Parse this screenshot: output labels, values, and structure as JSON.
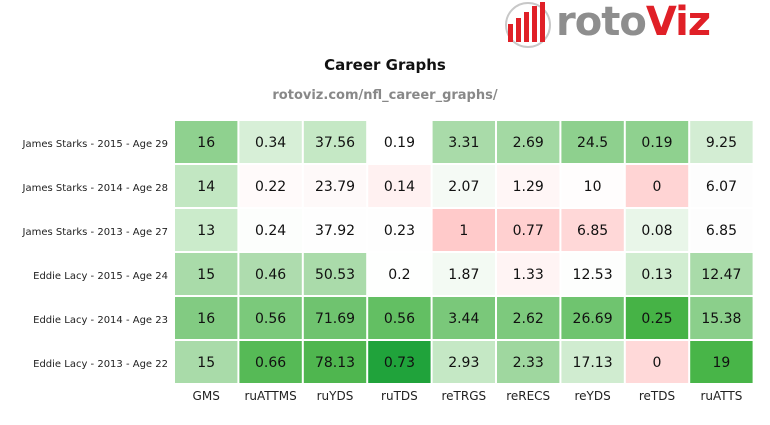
{
  "logo": {
    "text_part1": "roto",
    "text_part2": "Viz",
    "brand_gray": "#8e8e8e",
    "brand_red": "#e02027"
  },
  "chart_data": {
    "type": "heatmap",
    "title": "Career Graphs",
    "subtitle": "rotoviz.com/nfl_career_graphs/",
    "columns": [
      "GMS",
      "ruATTMS",
      "ruYDS",
      "ruTDS",
      "reTRGS",
      "reRECS",
      "reYDS",
      "reTDS",
      "ruATTS"
    ],
    "rows": [
      "James Starks - 2015 - Age 29",
      "James Starks - 2014 - Age 28",
      "James Starks - 2013 - Age 27",
      "Eddie Lacy - 2015 - Age 24",
      "Eddie Lacy - 2014 - Age 23",
      "Eddie Lacy - 2013 - Age 22"
    ],
    "values": [
      [
        "16",
        "0.34",
        "37.56",
        "0.19",
        "3.31",
        "2.69",
        "24.5",
        "0.19",
        "9.25"
      ],
      [
        "14",
        "0.22",
        "23.79",
        "0.14",
        "2.07",
        "1.29",
        "10",
        "0",
        "6.07"
      ],
      [
        "13",
        "0.24",
        "37.92",
        "0.23",
        "1",
        "0.77",
        "6.85",
        "0.08",
        "6.85"
      ],
      [
        "15",
        "0.46",
        "50.53",
        "0.2",
        "1.87",
        "1.33",
        "12.53",
        "0.13",
        "12.47"
      ],
      [
        "16",
        "0.56",
        "71.69",
        "0.56",
        "3.44",
        "2.62",
        "26.69",
        "0.25",
        "15.38"
      ],
      [
        "15",
        "0.66",
        "78.13",
        "0.73",
        "2.93",
        "2.33",
        "17.13",
        "0",
        "19"
      ]
    ],
    "cell_colors": [
      [
        "#8fd18f",
        "#d7efd7",
        "#c5e8c5",
        "#ffffff",
        "#a9dba9",
        "#a3d9a3",
        "#8ed08e",
        "#8fd18f",
        "#d3edd3"
      ],
      [
        "#c2e7c2",
        "#fffafa",
        "#fef9f9",
        "#fff1f1",
        "#f5faf5",
        "#fff6f6",
        "#fffdfd",
        "#ffd4d4",
        "#fdfdfd"
      ],
      [
        "#cbebcb",
        "#fcfefc",
        "#fefefe",
        "#fefefe",
        "#ffcaca",
        "#ffd0d0",
        "#ffd8d8",
        "#e9f6e9",
        "#fdfdfd"
      ],
      [
        "#a9dba9",
        "#aedcae",
        "#aadbaa",
        "#fefffe",
        "#f3faf3",
        "#fff4f4",
        "#fdfefd",
        "#d1edd1",
        "#a9dba9"
      ],
      [
        "#82cb82",
        "#7bc97b",
        "#6fc36f",
        "#63bf63",
        "#7ac87a",
        "#7dc97d",
        "#6fc46f",
        "#46b346",
        "#8bcf8b"
      ],
      [
        "#a9dba9",
        "#56ba56",
        "#4fb64f",
        "#20a33b",
        "#c5e8c5",
        "#9fd79f",
        "#d0ecd0",
        "#ffd9d9",
        "#48b548"
      ]
    ]
  }
}
